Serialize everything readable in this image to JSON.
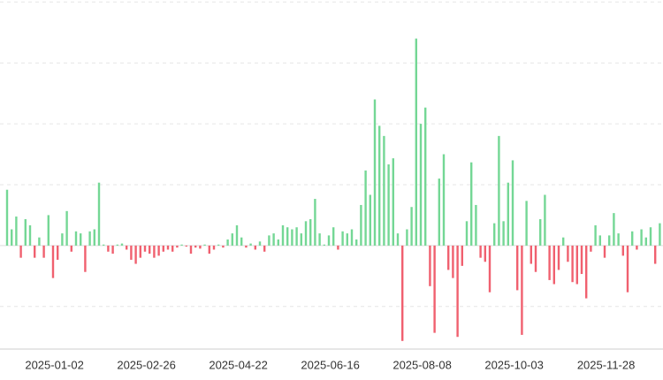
{
  "chart_data": {
    "type": "bar",
    "categories": [
      null,
      null,
      null,
      null,
      null,
      null,
      null,
      null,
      "2025-01-02",
      null,
      null,
      null,
      null,
      null,
      null,
      null,
      null,
      null,
      null,
      null,
      null,
      null,
      null,
      null,
      null,
      null,
      null,
      null,
      "2025-02-26",
      null,
      null,
      null,
      null,
      null,
      null,
      null,
      null,
      null,
      null,
      null,
      null,
      null,
      null,
      null,
      null,
      null,
      null,
      null,
      "2025-04-22",
      null,
      null,
      null,
      null,
      null,
      null,
      null,
      null,
      null,
      null,
      null,
      null,
      null,
      null,
      null,
      null,
      null,
      null,
      null,
      "2025-06-16",
      null,
      null,
      null,
      null,
      null,
      null,
      null,
      null,
      null,
      null,
      null,
      null,
      null,
      null,
      null,
      null,
      null,
      null,
      null,
      "2025-08-08",
      null,
      null,
      null,
      null,
      null,
      null,
      null,
      null,
      null,
      null,
      null,
      null,
      null,
      null,
      null,
      null,
      null,
      null,
      null,
      "2025-10-03",
      null,
      null,
      null,
      null,
      null,
      null,
      null,
      null,
      null,
      null,
      null,
      null,
      null,
      null,
      null,
      null,
      null,
      null,
      null,
      "2025-11-28",
      null,
      null,
      null,
      null,
      null,
      null,
      null,
      null,
      null,
      null,
      null,
      null,
      null,
      null
    ],
    "values": [
      275,
      80,
      143,
      -60,
      130,
      100,
      -60,
      40,
      -60,
      150,
      -160,
      -70,
      60,
      170,
      -30,
      70,
      60,
      -130,
      70,
      80,
      310,
      5,
      -30,
      -40,
      5,
      10,
      -20,
      -70,
      -90,
      -60,
      -30,
      -40,
      -60,
      -50,
      -30,
      -20,
      -30,
      -10,
      5,
      -5,
      -40,
      -10,
      -15,
      5,
      -40,
      -20,
      5,
      -10,
      30,
      60,
      100,
      40,
      -10,
      10,
      -20,
      20,
      -30,
      50,
      60,
      30,
      100,
      90,
      80,
      90,
      60,
      120,
      130,
      230,
      60,
      5,
      50,
      90,
      -20,
      70,
      60,
      80,
      30,
      200,
      370,
      250,
      720,
      590,
      540,
      400,
      430,
      60,
      -470,
      80,
      190,
      1020,
      600,
      680,
      -200,
      -430,
      330,
      450,
      -120,
      -160,
      -450,
      -100,
      120,
      410,
      200,
      -60,
      -80,
      -230,
      110,
      540,
      120,
      310,
      420,
      -220,
      -440,
      220,
      -90,
      -130,
      130,
      250,
      -170,
      -190,
      -120,
      40,
      -80,
      -180,
      -190,
      -140,
      -260,
      -30,
      100,
      50,
      -60,
      50,
      160,
      60,
      -50,
      -230,
      70,
      -20,
      80,
      40,
      90,
      -90,
      110
    ],
    "positive_color": "#74d795",
    "negative_color": "#f0606f",
    "ylim": [
      -510,
      1210
    ],
    "yticks": [
      -300,
      0,
      300,
      600,
      900,
      1200
    ],
    "grid": true
  }
}
